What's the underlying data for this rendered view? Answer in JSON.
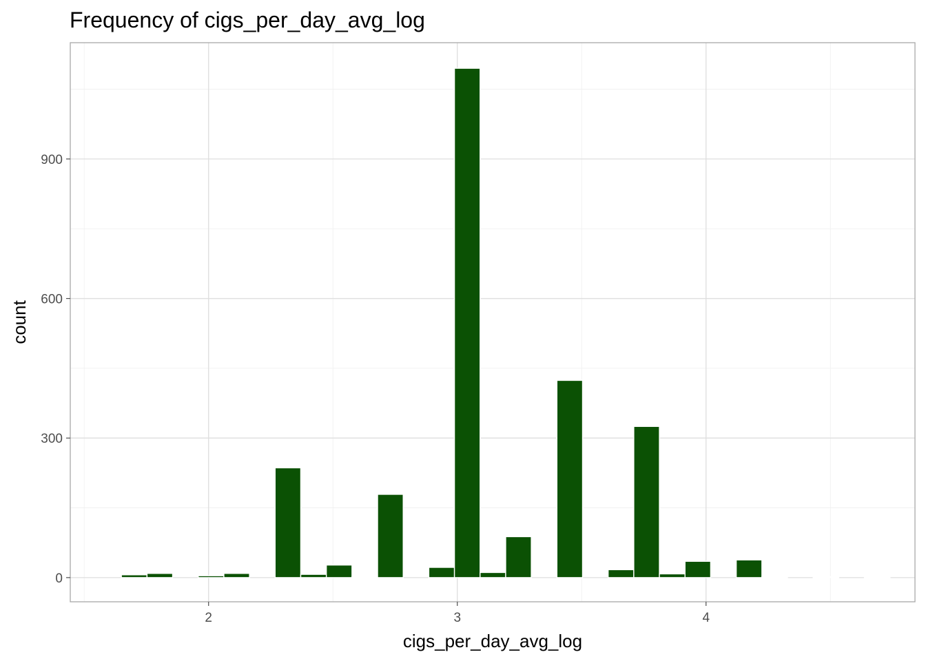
{
  "chart_data": {
    "type": "bar",
    "title": "Frequency of cigs_per_day_avg_log",
    "xlabel": "cigs_per_day_avg_log",
    "ylabel": "count",
    "xlim": [
      1.444,
      4.84
    ],
    "ylim": [
      -52,
      1150
    ],
    "x_ticks": [
      2,
      3,
      4
    ],
    "y_ticks": [
      0,
      300,
      600,
      900
    ],
    "x_minor": [
      1.5,
      2.5,
      3.5,
      4.5
    ],
    "y_minor": [
      150,
      450,
      750,
      1050
    ],
    "bin_width": 0.103,
    "bar_color": "#0b5104",
    "bar_outline": "#ffffff",
    "grid": true,
    "x": [
      1.598,
      1.701,
      1.804,
      1.907,
      2.01,
      2.113,
      2.216,
      2.319,
      2.422,
      2.525,
      2.628,
      2.731,
      2.834,
      2.937,
      3.04,
      3.143,
      3.246,
      3.349,
      3.452,
      3.555,
      3.658,
      3.761,
      3.864,
      3.967,
      4.07,
      4.173,
      4.276,
      4.379,
      4.482,
      4.585,
      4.688
    ],
    "values": [
      0,
      6,
      9,
      0,
      4,
      9,
      0,
      236,
      7,
      27,
      2,
      179,
      0,
      22,
      1095,
      11,
      88,
      0,
      424,
      0,
      17,
      325,
      8,
      35,
      0,
      38,
      2,
      0,
      2,
      0,
      1
    ]
  }
}
